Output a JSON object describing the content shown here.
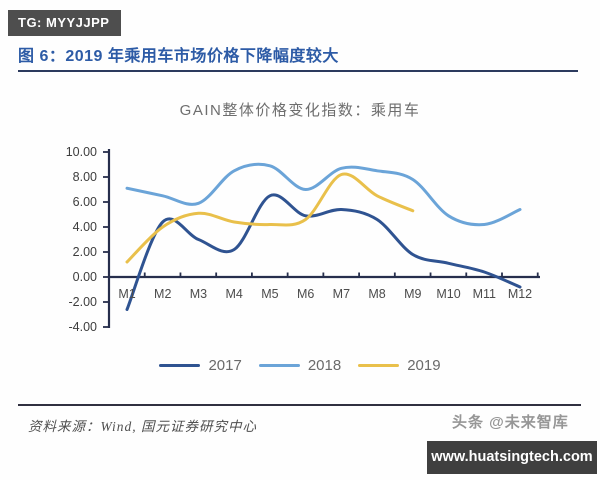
{
  "badge": {
    "label": "TG: MYYJJPP"
  },
  "figure": {
    "title": "图 6：2019 年乘用车市场价格下降幅度较大"
  },
  "chart_data": {
    "type": "line",
    "title": "GAIN整体价格变化指数：乘用车",
    "categories": [
      "M1",
      "M2",
      "M3",
      "M4",
      "M5",
      "M6",
      "M7",
      "M8",
      "M9",
      "M10",
      "M11",
      "M12"
    ],
    "series": [
      {
        "name": "2017",
        "color": "#2f5391",
        "values": [
          -2.6,
          4.4,
          3.0,
          2.2,
          6.5,
          4.9,
          5.4,
          4.6,
          1.8,
          1.1,
          0.4,
          -0.8
        ]
      },
      {
        "name": "2018",
        "color": "#6ba4d8",
        "values": [
          7.1,
          6.5,
          5.9,
          8.5,
          8.9,
          7.0,
          8.7,
          8.5,
          7.8,
          4.9,
          4.2,
          5.4
        ]
      },
      {
        "name": "2019",
        "color": "#e9c04b",
        "values": [
          1.2,
          4.0,
          5.1,
          4.4,
          4.2,
          4.6,
          8.2,
          6.5,
          5.3
        ]
      }
    ],
    "ylim": [
      -4,
      10
    ],
    "ytick_step": 2,
    "yticks": [
      "10.00",
      "8.00",
      "6.00",
      "4.00",
      "2.00",
      "0.00",
      "-2.00",
      "-4.00"
    ],
    "xlabel": "",
    "ylabel": "",
    "grid": false,
    "legend_position": "bottom",
    "axis_color": "#262e4c"
  },
  "footer": {
    "source": "资料来源：Wind, 国元证券研究中心",
    "watermark": "头条 @未来智库",
    "site_bar": "www.huatsingtech.com"
  }
}
